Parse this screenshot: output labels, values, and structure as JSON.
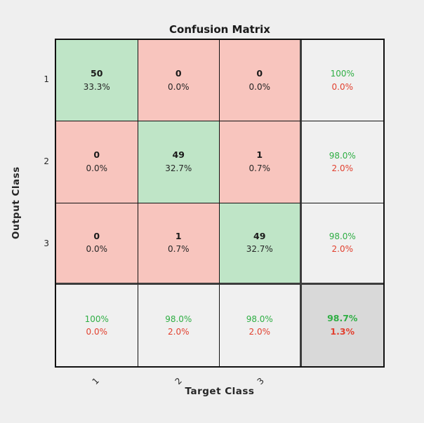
{
  "figure": {
    "title": "Confusion Matrix",
    "xlabel": "Target Class",
    "ylabel": "Output Class"
  },
  "axis": {
    "x_ticks": [
      "1",
      "2",
      "3"
    ],
    "y_ticks": [
      "1",
      "2",
      "3"
    ]
  },
  "colors": {
    "cell-green": "#bfe5c7",
    "cell-red": "#f8c5be",
    "cell-gray": "#d9d9d9",
    "cell-summary": "#f0f0f0",
    "text-green": "#2fae44",
    "text-red": "#e2402f",
    "figure-bg": "#efefef"
  },
  "chart_data": {
    "type": "heatmap",
    "title": "Confusion Matrix",
    "xlabel": "Target Class",
    "ylabel": "Output Class",
    "classes": [
      "1",
      "2",
      "3"
    ],
    "counts": [
      [
        50,
        0,
        0
      ],
      [
        0,
        49,
        1
      ],
      [
        0,
        1,
        49
      ]
    ],
    "percent_of_total": [
      [
        "33.3%",
        "0.0%",
        "0.0%"
      ],
      [
        "0.0%",
        "32.7%",
        "0.7%"
      ],
      [
        "0.0%",
        "0.7%",
        "32.7%"
      ]
    ],
    "row_summary_positive": [
      "100%",
      "98.0%",
      "98.0%"
    ],
    "row_summary_negative": [
      "0.0%",
      "2.0%",
      "2.0%"
    ],
    "col_summary_positive": [
      "100%",
      "98.0%",
      "98.0%"
    ],
    "col_summary_negative": [
      "0.0%",
      "2.0%",
      "2.0%"
    ],
    "overall_accuracy": "98.7%",
    "overall_error": "1.3%",
    "legend_position": "none",
    "grid": true
  },
  "cells": [
    {
      "line1": "50",
      "line2": "33.3%",
      "kind": "diag"
    },
    {
      "line1": "0",
      "line2": "0.0%",
      "kind": "off"
    },
    {
      "line1": "0",
      "line2": "0.0%",
      "kind": "off"
    },
    {
      "line1": "100%",
      "line2": "0.0%",
      "kind": "summary"
    },
    {
      "line1": "0",
      "line2": "0.0%",
      "kind": "off"
    },
    {
      "line1": "49",
      "line2": "32.7%",
      "kind": "diag"
    },
    {
      "line1": "1",
      "line2": "0.7%",
      "kind": "off"
    },
    {
      "line1": "98.0%",
      "line2": "2.0%",
      "kind": "summary"
    },
    {
      "line1": "0",
      "line2": "0.0%",
      "kind": "off"
    },
    {
      "line1": "1",
      "line2": "0.7%",
      "kind": "off"
    },
    {
      "line1": "49",
      "line2": "32.7%",
      "kind": "diag"
    },
    {
      "line1": "98.0%",
      "line2": "2.0%",
      "kind": "summary"
    },
    {
      "line1": "100%",
      "line2": "0.0%",
      "kind": "summary"
    },
    {
      "line1": "98.0%",
      "line2": "2.0%",
      "kind": "summary"
    },
    {
      "line1": "98.0%",
      "line2": "2.0%",
      "kind": "summary"
    },
    {
      "line1": "98.7%",
      "line2": "1.3%",
      "kind": "total"
    }
  ]
}
